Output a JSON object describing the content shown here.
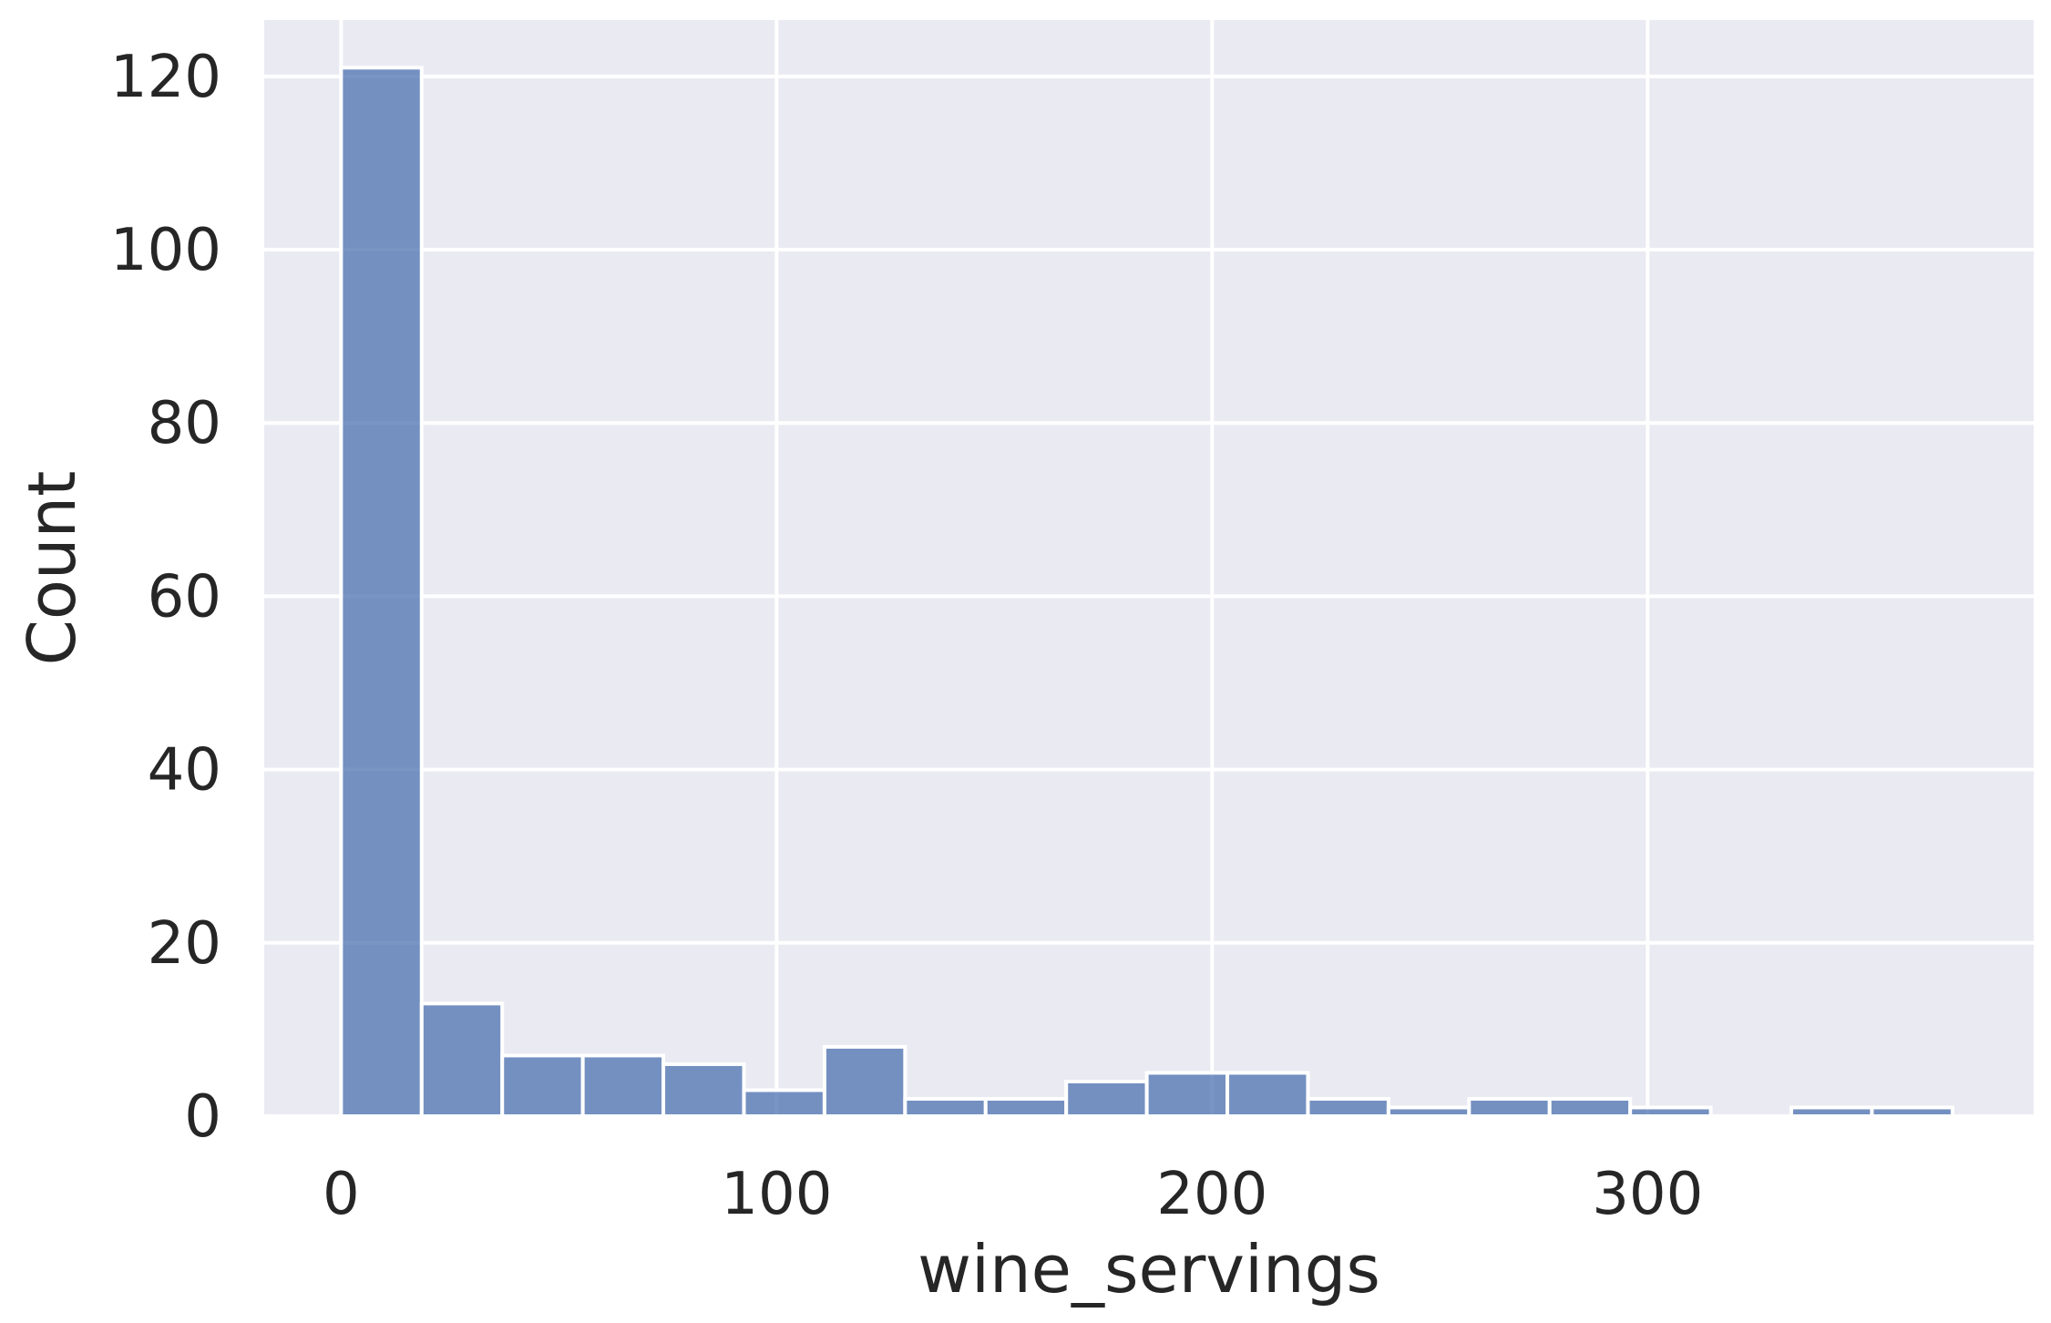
{
  "chart_data": {
    "type": "bar",
    "subtype": "histogram",
    "title": "",
    "xlabel": "wine_servings",
    "ylabel": "Count",
    "xlim": [
      -17.65,
      388.65
    ],
    "ylim": [
      0,
      126.5
    ],
    "x_ticks": [
      0,
      100,
      200,
      300
    ],
    "y_ticks": [
      0,
      20,
      40,
      60,
      80,
      100,
      120
    ],
    "grid": true,
    "bins": [
      {
        "x0": 0.0,
        "x1": 18.5,
        "count": 121
      },
      {
        "x0": 18.5,
        "x1": 37.0,
        "count": 13
      },
      {
        "x0": 37.0,
        "x1": 55.5,
        "count": 7
      },
      {
        "x0": 55.5,
        "x1": 74.0,
        "count": 7
      },
      {
        "x0": 74.0,
        "x1": 92.5,
        "count": 6
      },
      {
        "x0": 92.5,
        "x1": 111.0,
        "count": 3
      },
      {
        "x0": 111.0,
        "x1": 129.5,
        "count": 8
      },
      {
        "x0": 129.5,
        "x1": 148.0,
        "count": 2
      },
      {
        "x0": 148.0,
        "x1": 166.5,
        "count": 2
      },
      {
        "x0": 166.5,
        "x1": 185.0,
        "count": 4
      },
      {
        "x0": 185.0,
        "x1": 203.5,
        "count": 5
      },
      {
        "x0": 203.5,
        "x1": 222.0,
        "count": 5
      },
      {
        "x0": 222.0,
        "x1": 240.5,
        "count": 2
      },
      {
        "x0": 240.5,
        "x1": 259.0,
        "count": 1
      },
      {
        "x0": 259.0,
        "x1": 277.5,
        "count": 2
      },
      {
        "x0": 277.5,
        "x1": 296.0,
        "count": 2
      },
      {
        "x0": 296.0,
        "x1": 314.5,
        "count": 1
      },
      {
        "x0": 314.5,
        "x1": 333.0,
        "count": 0
      },
      {
        "x0": 333.0,
        "x1": 351.5,
        "count": 1
      },
      {
        "x0": 351.5,
        "x1": 370.0,
        "count": 1
      }
    ],
    "colors": {
      "bar_fill": "#4c72b0",
      "bar_stroke": "#ffffff",
      "plot_background": "#eaeaf2",
      "grid": "#ffffff",
      "text": "#262626"
    }
  }
}
